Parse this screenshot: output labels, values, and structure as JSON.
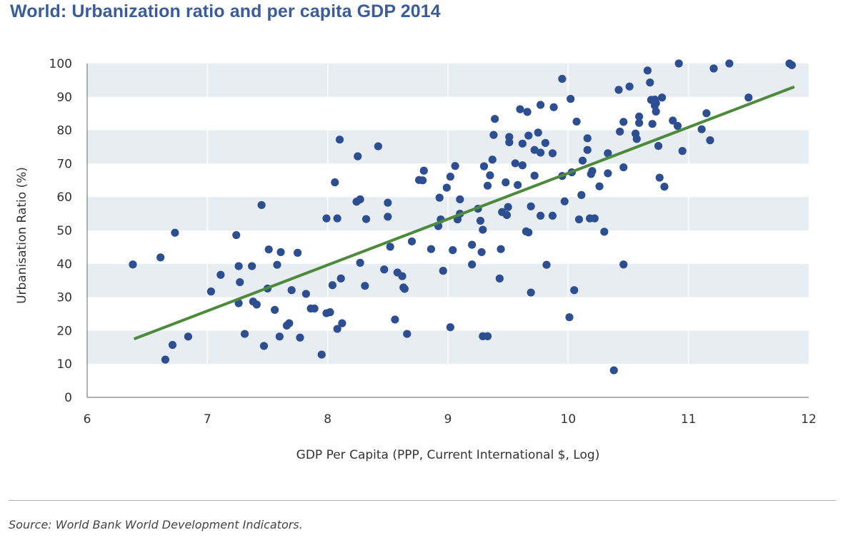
{
  "header": {
    "title": "World: Urbanization ratio and per capita GDP 2014"
  },
  "footer": {
    "source": "Source: World Bank World Development Indicators."
  },
  "chart_data": {
    "type": "scatter",
    "title": "World: Urbanization ratio and per capita GDP 2014",
    "xlabel": "GDP Per Capita (PPP, Current International $, Log)",
    "ylabel": "Urbanisation Ratio (%)",
    "xlim": [
      6,
      12
    ],
    "ylim": [
      0,
      100
    ],
    "xticks": [
      "6",
      "7",
      "8",
      "9",
      "10",
      "11",
      "12"
    ],
    "yticks": [
      "0",
      "10",
      "20",
      "30",
      "40",
      "50",
      "60",
      "70",
      "80",
      "90",
      "100"
    ],
    "grid": "alternating horizontal bands",
    "colors": {
      "points": "#2d4f91",
      "trendline": "#4d8a3c",
      "band": "#e8edf2"
    },
    "trendline": {
      "x": [
        6.39,
        11.88
      ],
      "y": [
        17.5,
        93
      ]
    },
    "points": [
      [
        6.38,
        39.8
      ],
      [
        6.61,
        41.9
      ],
      [
        6.65,
        11.3
      ],
      [
        6.71,
        15.7
      ],
      [
        6.73,
        49.3
      ],
      [
        6.84,
        18.2
      ],
      [
        7.03,
        31.7
      ],
      [
        7.11,
        36.7
      ],
      [
        7.24,
        48.6
      ],
      [
        7.26,
        39.3
      ],
      [
        7.26,
        28.2
      ],
      [
        7.27,
        34.5
      ],
      [
        7.31,
        19.0
      ],
      [
        7.37,
        39.3
      ],
      [
        7.38,
        28.7
      ],
      [
        7.41,
        27.8
      ],
      [
        7.45,
        57.6
      ],
      [
        7.47,
        15.4
      ],
      [
        7.5,
        32.6
      ],
      [
        7.51,
        44.3
      ],
      [
        7.56,
        26.2
      ],
      [
        7.58,
        39.7
      ],
      [
        7.61,
        43.5
      ],
      [
        7.6,
        18.2
      ],
      [
        7.66,
        21.5
      ],
      [
        7.68,
        22.2
      ],
      [
        7.7,
        32.1
      ],
      [
        7.75,
        43.3
      ],
      [
        7.77,
        17.9
      ],
      [
        7.82,
        31.0
      ],
      [
        7.86,
        26.6
      ],
      [
        7.89,
        26.6
      ],
      [
        7.95,
        12.8
      ],
      [
        7.99,
        53.6
      ],
      [
        7.99,
        25.2
      ],
      [
        8.02,
        25.5
      ],
      [
        8.04,
        33.6
      ],
      [
        8.06,
        64.4
      ],
      [
        8.08,
        53.6
      ],
      [
        8.08,
        20.5
      ],
      [
        8.1,
        77.2
      ],
      [
        8.11,
        35.6
      ],
      [
        8.12,
        22.2
      ],
      [
        8.24,
        58.6
      ],
      [
        8.25,
        72.2
      ],
      [
        8.27,
        59.3
      ],
      [
        8.27,
        40.3
      ],
      [
        8.31,
        33.4
      ],
      [
        8.32,
        53.4
      ],
      [
        8.42,
        75.2
      ],
      [
        8.47,
        38.3
      ],
      [
        8.5,
        54.1
      ],
      [
        8.5,
        58.3
      ],
      [
        8.52,
        45.1
      ],
      [
        8.56,
        23.3
      ],
      [
        8.58,
        37.4
      ],
      [
        8.62,
        36.3
      ],
      [
        8.63,
        32.9
      ],
      [
        8.64,
        32.5
      ],
      [
        8.66,
        19.0
      ],
      [
        8.7,
        46.7
      ],
      [
        8.76,
        65.1
      ],
      [
        8.79,
        65.0
      ],
      [
        8.8,
        67.9
      ],
      [
        8.86,
        44.4
      ],
      [
        8.92,
        51.3
      ],
      [
        8.93,
        59.8
      ],
      [
        8.94,
        53.3
      ],
      [
        8.96,
        37.9
      ],
      [
        8.99,
        62.8
      ],
      [
        9.02,
        66.1
      ],
      [
        9.02,
        21.0
      ],
      [
        9.04,
        44.1
      ],
      [
        9.06,
        69.3
      ],
      [
        9.08,
        53.3
      ],
      [
        9.1,
        55.0
      ],
      [
        9.1,
        59.3
      ],
      [
        9.2,
        45.7
      ],
      [
        9.2,
        39.8
      ],
      [
        9.25,
        56.5
      ],
      [
        9.27,
        52.9
      ],
      [
        9.28,
        43.5
      ],
      [
        9.29,
        18.3
      ],
      [
        9.29,
        50.2
      ],
      [
        9.3,
        69.2
      ],
      [
        9.33,
        18.3
      ],
      [
        9.33,
        63.4
      ],
      [
        9.35,
        66.5
      ],
      [
        9.37,
        71.2
      ],
      [
        9.38,
        78.6
      ],
      [
        9.39,
        83.4
      ],
      [
        9.43,
        35.6
      ],
      [
        9.44,
        44.4
      ],
      [
        9.45,
        55.5
      ],
      [
        9.48,
        64.4
      ],
      [
        9.49,
        54.6
      ],
      [
        9.5,
        57.0
      ],
      [
        9.51,
        78.0
      ],
      [
        9.51,
        76.4
      ],
      [
        9.56,
        70.1
      ],
      [
        9.58,
        63.6
      ],
      [
        9.6,
        86.3
      ],
      [
        9.62,
        69.5
      ],
      [
        9.62,
        76.0
      ],
      [
        9.65,
        49.7
      ],
      [
        9.66,
        85.5
      ],
      [
        9.67,
        78.4
      ],
      [
        9.67,
        49.4
      ],
      [
        9.69,
        57.2
      ],
      [
        9.69,
        31.4
      ],
      [
        9.72,
        74.1
      ],
      [
        9.72,
        66.4
      ],
      [
        9.75,
        79.3
      ],
      [
        9.77,
        54.4
      ],
      [
        9.77,
        87.6
      ],
      [
        9.77,
        73.3
      ],
      [
        9.81,
        76.2
      ],
      [
        9.82,
        39.7
      ],
      [
        9.87,
        54.4
      ],
      [
        9.87,
        73.1
      ],
      [
        9.88,
        86.9
      ],
      [
        9.95,
        95.4
      ],
      [
        9.95,
        66.3
      ],
      [
        9.97,
        58.7
      ],
      [
        10.01,
        24.0
      ],
      [
        10.02,
        89.4
      ],
      [
        10.03,
        67.4
      ],
      [
        10.05,
        32.1
      ],
      [
        10.07,
        82.6
      ],
      [
        10.09,
        53.3
      ],
      [
        10.11,
        60.6
      ],
      [
        10.12,
        70.9
      ],
      [
        10.16,
        77.6
      ],
      [
        10.16,
        74.1
      ],
      [
        10.18,
        53.6
      ],
      [
        10.19,
        66.9
      ],
      [
        10.2,
        67.8
      ],
      [
        10.22,
        53.6
      ],
      [
        10.26,
        63.2
      ],
      [
        10.3,
        49.6
      ],
      [
        10.33,
        73.1
      ],
      [
        10.33,
        67.1
      ],
      [
        10.38,
        8.1
      ],
      [
        10.42,
        92.1
      ],
      [
        10.43,
        79.6
      ],
      [
        10.46,
        68.9
      ],
      [
        10.46,
        82.5
      ],
      [
        10.46,
        39.8
      ],
      [
        10.51,
        93.1
      ],
      [
        10.56,
        79.0
      ],
      [
        10.57,
        77.4
      ],
      [
        10.59,
        84.1
      ],
      [
        10.59,
        82.2
      ],
      [
        10.66,
        97.9
      ],
      [
        10.68,
        94.3
      ],
      [
        10.69,
        89.1
      ],
      [
        10.7,
        81.9
      ],
      [
        10.72,
        89.2
      ],
      [
        10.72,
        87.4
      ],
      [
        10.73,
        85.6
      ],
      [
        10.73,
        88.1
      ],
      [
        10.75,
        75.3
      ],
      [
        10.76,
        65.8
      ],
      [
        10.78,
        89.8
      ],
      [
        10.8,
        63.1
      ],
      [
        10.87,
        82.9
      ],
      [
        10.91,
        81.3
      ],
      [
        10.92,
        100
      ],
      [
        10.95,
        73.8
      ],
      [
        11.11,
        80.3
      ],
      [
        11.15,
        85.1
      ],
      [
        11.18,
        77.0
      ],
      [
        11.21,
        98.5
      ],
      [
        11.34,
        100
      ],
      [
        11.5,
        89.8
      ],
      [
        11.84,
        100
      ],
      [
        11.86,
        99.5
      ]
    ]
  }
}
